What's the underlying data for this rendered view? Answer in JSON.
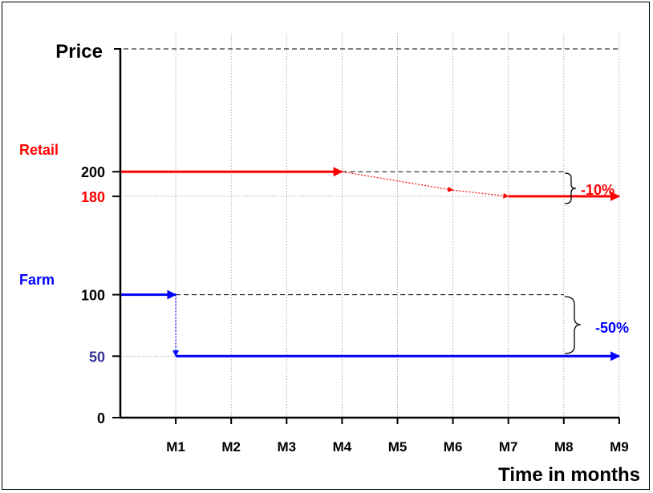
{
  "chart_data": {
    "type": "line",
    "xlabel": "Time in months",
    "ylabel": "Price",
    "categories": [
      "M1",
      "M2",
      "M3",
      "M4",
      "M5",
      "M6",
      "M7",
      "M8",
      "M9"
    ],
    "xlim": [
      0,
      9
    ],
    "ylim": [
      0,
      300
    ],
    "y_ticks": [
      "0",
      "50",
      "100",
      "180",
      "200"
    ],
    "grid": true,
    "series": [
      {
        "name": "Retail",
        "color": "#ff0000",
        "points": [
          {
            "x": 0,
            "y": 200
          },
          {
            "x": 4,
            "y": 200
          },
          {
            "x": 6,
            "y": 185
          },
          {
            "x": 7,
            "y": 180
          },
          {
            "x": 9,
            "y": 180
          }
        ],
        "change_label": "-10%"
      },
      {
        "name": "Farm",
        "color": "#0000ff",
        "points": [
          {
            "x": 0,
            "y": 100
          },
          {
            "x": 1,
            "y": 100
          },
          {
            "x": 1,
            "y": 50
          },
          {
            "x": 9,
            "y": 50
          }
        ],
        "change_label": "-50%"
      }
    ],
    "colors": {
      "retail": "#ff0000",
      "farm": "#0000ff",
      "tick_180": "#ff0000",
      "tick_50": "#333399",
      "axis": "#000000"
    }
  }
}
